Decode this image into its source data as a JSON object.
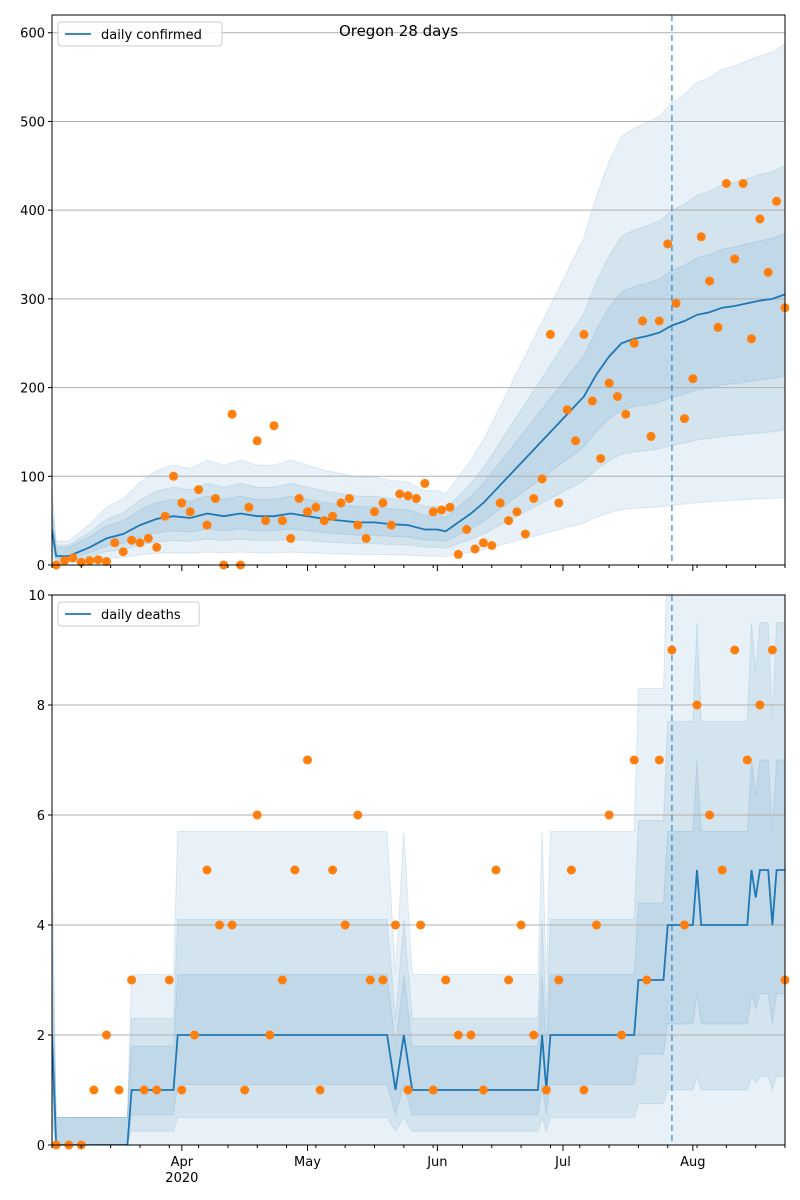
{
  "chart_data": [
    {
      "type": "line",
      "title": "Oregon 28 days",
      "ylim": [
        0,
        620
      ],
      "yticks": [
        0,
        100,
        200,
        300,
        400,
        500,
        600
      ],
      "grid": "y",
      "legend": "top-left",
      "series": [
        {
          "name": "daily confirmed",
          "kind": "line",
          "color": "#1f77b4",
          "points": [
            [
              "2020-03-01",
              40
            ],
            [
              "2020-03-02",
              10
            ],
            [
              "2020-03-05",
              10
            ],
            [
              "2020-03-10",
              20
            ],
            [
              "2020-03-14",
              30
            ],
            [
              "2020-03-18",
              35
            ],
            [
              "2020-03-22",
              45
            ],
            [
              "2020-03-26",
              52
            ],
            [
              "2020-03-30",
              55
            ],
            [
              "2020-04-03",
              53
            ],
            [
              "2020-04-07",
              58
            ],
            [
              "2020-04-11",
              55
            ],
            [
              "2020-04-15",
              58
            ],
            [
              "2020-04-19",
              55
            ],
            [
              "2020-04-23",
              55
            ],
            [
              "2020-04-27",
              58
            ],
            [
              "2020-05-01",
              55
            ],
            [
              "2020-05-05",
              52
            ],
            [
              "2020-05-09",
              50
            ],
            [
              "2020-05-13",
              48
            ],
            [
              "2020-05-17",
              48
            ],
            [
              "2020-05-21",
              46
            ],
            [
              "2020-05-25",
              45
            ],
            [
              "2020-05-29",
              40
            ],
            [
              "2020-06-01",
              40
            ],
            [
              "2020-06-03",
              38
            ],
            [
              "2020-06-06",
              48
            ],
            [
              "2020-06-09",
              58
            ],
            [
              "2020-06-12",
              70
            ],
            [
              "2020-06-15",
              85
            ],
            [
              "2020-06-18",
              100
            ],
            [
              "2020-06-21",
              115
            ],
            [
              "2020-06-24",
              130
            ],
            [
              "2020-06-27",
              145
            ],
            [
              "2020-06-30",
              160
            ],
            [
              "2020-07-03",
              175
            ],
            [
              "2020-07-06",
              190
            ],
            [
              "2020-07-09",
              215
            ],
            [
              "2020-07-12",
              235
            ],
            [
              "2020-07-15",
              250
            ],
            [
              "2020-07-18",
              255
            ],
            [
              "2020-07-21",
              258
            ],
            [
              "2020-07-24",
              262
            ],
            [
              "2020-07-27",
              270
            ],
            [
              "2020-07-30",
              275
            ],
            [
              "2020-08-02",
              282
            ],
            [
              "2020-08-05",
              285
            ],
            [
              "2020-08-08",
              290
            ],
            [
              "2020-08-11",
              292
            ],
            [
              "2020-08-14",
              295
            ],
            [
              "2020-08-17",
              298
            ],
            [
              "2020-08-20",
              300
            ],
            [
              "2020-08-23",
              305
            ]
          ]
        },
        {
          "name": "",
          "kind": "scatter",
          "color": "#ff7f0e",
          "points": [
            [
              "2020-03-02",
              0
            ],
            [
              "2020-03-04",
              5
            ],
            [
              "2020-03-06",
              8
            ],
            [
              "2020-03-08",
              3
            ],
            [
              "2020-03-10",
              5
            ],
            [
              "2020-03-12",
              6
            ],
            [
              "2020-03-14",
              4
            ],
            [
              "2020-03-16",
              25
            ],
            [
              "2020-03-18",
              15
            ],
            [
              "2020-03-20",
              28
            ],
            [
              "2020-03-22",
              25
            ],
            [
              "2020-03-24",
              30
            ],
            [
              "2020-03-26",
              20
            ],
            [
              "2020-03-28",
              55
            ],
            [
              "2020-03-30",
              100
            ],
            [
              "2020-04-01",
              70
            ],
            [
              "2020-04-03",
              60
            ],
            [
              "2020-04-05",
              85
            ],
            [
              "2020-04-07",
              45
            ],
            [
              "2020-04-09",
              75
            ],
            [
              "2020-04-11",
              0
            ],
            [
              "2020-04-13",
              170
            ],
            [
              "2020-04-15",
              0
            ],
            [
              "2020-04-17",
              65
            ],
            [
              "2020-04-19",
              140
            ],
            [
              "2020-04-21",
              50
            ],
            [
              "2020-04-23",
              157
            ],
            [
              "2020-04-25",
              50
            ],
            [
              "2020-04-27",
              30
            ],
            [
              "2020-04-29",
              75
            ],
            [
              "2020-05-01",
              60
            ],
            [
              "2020-05-03",
              65
            ],
            [
              "2020-05-05",
              50
            ],
            [
              "2020-05-07",
              55
            ],
            [
              "2020-05-09",
              70
            ],
            [
              "2020-05-11",
              75
            ],
            [
              "2020-05-13",
              45
            ],
            [
              "2020-05-15",
              30
            ],
            [
              "2020-05-17",
              60
            ],
            [
              "2020-05-19",
              70
            ],
            [
              "2020-05-21",
              45
            ],
            [
              "2020-05-23",
              80
            ],
            [
              "2020-05-25",
              78
            ],
            [
              "2020-05-27",
              75
            ],
            [
              "2020-05-29",
              92
            ],
            [
              "2020-05-31",
              60
            ],
            [
              "2020-06-02",
              62
            ],
            [
              "2020-06-04",
              65
            ],
            [
              "2020-06-06",
              12
            ],
            [
              "2020-06-08",
              40
            ],
            [
              "2020-06-10",
              18
            ],
            [
              "2020-06-12",
              25
            ],
            [
              "2020-06-14",
              22
            ],
            [
              "2020-06-16",
              70
            ],
            [
              "2020-06-18",
              50
            ],
            [
              "2020-06-20",
              60
            ],
            [
              "2020-06-22",
              35
            ],
            [
              "2020-06-24",
              75
            ],
            [
              "2020-06-26",
              97
            ],
            [
              "2020-06-28",
              260
            ],
            [
              "2020-06-30",
              70
            ],
            [
              "2020-07-02",
              175
            ],
            [
              "2020-07-04",
              140
            ],
            [
              "2020-07-06",
              260
            ],
            [
              "2020-07-08",
              185
            ],
            [
              "2020-07-10",
              120
            ],
            [
              "2020-07-12",
              205
            ],
            [
              "2020-07-14",
              190
            ],
            [
              "2020-07-16",
              170
            ],
            [
              "2020-07-18",
              250
            ],
            [
              "2020-07-20",
              275
            ],
            [
              "2020-07-22",
              145
            ],
            [
              "2020-07-24",
              275
            ],
            [
              "2020-07-26",
              362
            ],
            [
              "2020-07-28",
              295
            ],
            [
              "2020-07-30",
              165
            ],
            [
              "2020-08-01",
              210
            ],
            [
              "2020-08-03",
              370
            ],
            [
              "2020-08-05",
              320
            ],
            [
              "2020-08-07",
              268
            ],
            [
              "2020-08-09",
              430
            ],
            [
              "2020-08-11",
              345
            ],
            [
              "2020-08-13",
              430
            ],
            [
              "2020-08-15",
              255
            ],
            [
              "2020-08-17",
              390
            ],
            [
              "2020-08-19",
              330
            ],
            [
              "2020-08-21",
              410
            ],
            [
              "2020-08-23",
              290
            ]
          ]
        }
      ]
    },
    {
      "type": "line",
      "title": "",
      "ylim": [
        0,
        10
      ],
      "yticks": [
        0,
        2,
        4,
        6,
        8,
        10
      ],
      "grid": "y",
      "legend": "top-left",
      "series": [
        {
          "name": "daily deaths",
          "kind": "line",
          "color": "#1f77b4",
          "points": [
            [
              "2020-03-01",
              2
            ],
            [
              "2020-03-02",
              0
            ],
            [
              "2020-03-19",
              0
            ],
            [
              "2020-03-20",
              1
            ],
            [
              "2020-03-30",
              1
            ],
            [
              "2020-03-31",
              2
            ],
            [
              "2020-05-20",
              2
            ],
            [
              "2020-05-22",
              1
            ],
            [
              "2020-05-24",
              2
            ],
            [
              "2020-05-26",
              1
            ],
            [
              "2020-06-25",
              1
            ],
            [
              "2020-06-26",
              2
            ],
            [
              "2020-06-27",
              1
            ],
            [
              "2020-06-28",
              2
            ],
            [
              "2020-07-18",
              2
            ],
            [
              "2020-07-19",
              3
            ],
            [
              "2020-07-25",
              3
            ],
            [
              "2020-07-26",
              4
            ],
            [
              "2020-08-01",
              4
            ],
            [
              "2020-08-02",
              5
            ],
            [
              "2020-08-03",
              4
            ],
            [
              "2020-08-14",
              4
            ],
            [
              "2020-08-15",
              5
            ],
            [
              "2020-08-16",
              4.5
            ],
            [
              "2020-08-17",
              5
            ],
            [
              "2020-08-19",
              5
            ],
            [
              "2020-08-20",
              4
            ],
            [
              "2020-08-21",
              5
            ],
            [
              "2020-08-23",
              5
            ]
          ]
        },
        {
          "name": "",
          "kind": "scatter",
          "color": "#ff7f0e",
          "points": [
            [
              "2020-03-02",
              0
            ],
            [
              "2020-03-05",
              0
            ],
            [
              "2020-03-08",
              0
            ],
            [
              "2020-03-11",
              1
            ],
            [
              "2020-03-14",
              2
            ],
            [
              "2020-03-17",
              1
            ],
            [
              "2020-03-20",
              3
            ],
            [
              "2020-03-23",
              1
            ],
            [
              "2020-03-26",
              1
            ],
            [
              "2020-03-29",
              3
            ],
            [
              "2020-04-01",
              1
            ],
            [
              "2020-04-04",
              2
            ],
            [
              "2020-04-07",
              5
            ],
            [
              "2020-04-10",
              4
            ],
            [
              "2020-04-13",
              4
            ],
            [
              "2020-04-16",
              1
            ],
            [
              "2020-04-19",
              6
            ],
            [
              "2020-04-22",
              2
            ],
            [
              "2020-04-25",
              3
            ],
            [
              "2020-04-28",
              5
            ],
            [
              "2020-05-01",
              7
            ],
            [
              "2020-05-04",
              1
            ],
            [
              "2020-05-07",
              5
            ],
            [
              "2020-05-10",
              4
            ],
            [
              "2020-05-13",
              6
            ],
            [
              "2020-05-16",
              3
            ],
            [
              "2020-05-19",
              3
            ],
            [
              "2020-05-22",
              4
            ],
            [
              "2020-05-25",
              1
            ],
            [
              "2020-05-28",
              4
            ],
            [
              "2020-05-31",
              1
            ],
            [
              "2020-06-03",
              3
            ],
            [
              "2020-06-06",
              2
            ],
            [
              "2020-06-09",
              2
            ],
            [
              "2020-06-12",
              1
            ],
            [
              "2020-06-15",
              5
            ],
            [
              "2020-06-18",
              3
            ],
            [
              "2020-06-21",
              4
            ],
            [
              "2020-06-24",
              2
            ],
            [
              "2020-06-27",
              1
            ],
            [
              "2020-06-30",
              3
            ],
            [
              "2020-07-03",
              5
            ],
            [
              "2020-07-06",
              1
            ],
            [
              "2020-07-09",
              4
            ],
            [
              "2020-07-12",
              6
            ],
            [
              "2020-07-15",
              2
            ],
            [
              "2020-07-18",
              7
            ],
            [
              "2020-07-21",
              3
            ],
            [
              "2020-07-24",
              7
            ],
            [
              "2020-07-27",
              9
            ],
            [
              "2020-07-30",
              4
            ],
            [
              "2020-08-02",
              8
            ],
            [
              "2020-08-05",
              6
            ],
            [
              "2020-08-08",
              5
            ],
            [
              "2020-08-11",
              9
            ],
            [
              "2020-08-14",
              7
            ],
            [
              "2020-08-17",
              8
            ],
            [
              "2020-08-20",
              9
            ],
            [
              "2020-08-23",
              3
            ]
          ]
        }
      ]
    }
  ],
  "x_axis": {
    "start": "2020-03-01",
    "end": "2020-08-23",
    "ticks": [
      {
        "date": "2020-04-01",
        "label": "Apr",
        "sublabel": "2020"
      },
      {
        "date": "2020-05-01",
        "label": "May",
        "sublabel": ""
      },
      {
        "date": "2020-06-01",
        "label": "Jun",
        "sublabel": ""
      },
      {
        "date": "2020-07-01",
        "label": "Jul",
        "sublabel": ""
      },
      {
        "date": "2020-08-01",
        "label": "Aug",
        "sublabel": ""
      }
    ]
  },
  "forecast_start": "2020-07-27",
  "colors": {
    "band": "#1f77b4",
    "grid": "#b0b0b0",
    "vline": "#1f77b4"
  }
}
